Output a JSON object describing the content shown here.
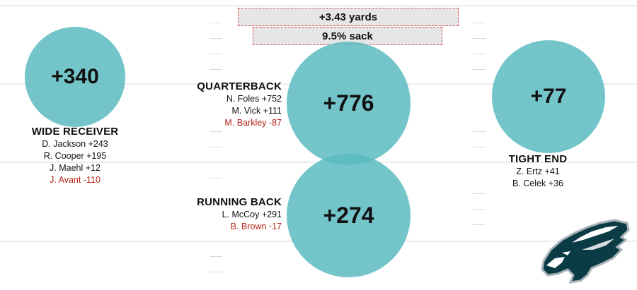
{
  "passing_stats": {
    "yards": "+3.43 yards",
    "sack": "9.5% sack"
  },
  "positions": {
    "wide_receiver": {
      "value": "+340",
      "label": "WIDE RECEIVER",
      "players": [
        {
          "text": "D. Jackson +243",
          "negative": false
        },
        {
          "text": "R. Cooper +195",
          "negative": false
        },
        {
          "text": "J. Maehl +12",
          "negative": false
        },
        {
          "text": "J. Avant -110",
          "negative": true
        }
      ]
    },
    "quarterback": {
      "value": "+776",
      "label": "QUARTERBACK",
      "players": [
        {
          "text": "N. Foles +752",
          "negative": false
        },
        {
          "text": "M. Vick +111",
          "negative": false
        },
        {
          "text": "M. Barkley -87",
          "negative": true
        }
      ]
    },
    "running_back": {
      "value": "+274",
      "label": "RUNNING BACK",
      "players": [
        {
          "text": "L. McCoy +291",
          "negative": false
        },
        {
          "text": "B. Brown -17",
          "negative": true
        }
      ]
    },
    "tight_end": {
      "value": "+77",
      "label": "TIGHT END",
      "players": [
        {
          "text": "Z. Ertz +41",
          "negative": false
        },
        {
          "text": "B. Celek +36",
          "negative": false
        }
      ]
    }
  },
  "colors": {
    "bubble": "#5abbc1",
    "negative_text": "#b42318",
    "stat_box_border": "#d9534f",
    "stat_box_bg": "#e6e6e6"
  },
  "logo": {
    "icon": "eagle-head-logo-icon"
  }
}
